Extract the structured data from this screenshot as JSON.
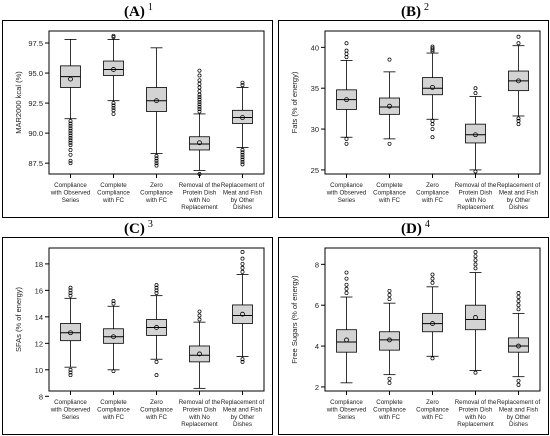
{
  "panels": [
    {
      "letter": "(A)",
      "marker": "1"
    },
    {
      "letter": "(B)",
      "marker": "2"
    },
    {
      "letter": "(C)",
      "marker": "3"
    },
    {
      "letter": "(D)",
      "marker": "4"
    }
  ],
  "chart_data": [
    {
      "type": "box",
      "panel": "(A)",
      "ylabel": "MAR2000 kcal (%)",
      "ylim": [
        86.6,
        98.5
      ],
      "yticks": [
        "87.5",
        "90.0",
        "92.5",
        "95.0",
        "97.5"
      ],
      "ytick_values": [
        87.5,
        90.0,
        92.5,
        95.0,
        97.5
      ],
      "categories": [
        "Compliance with Observed Series",
        "Complete Compliance with FC",
        "Zero Compliance with FC",
        "Removal of the Protein Dish with No Replacement",
        "Replacement of Meat and Fish by Other Dishes"
      ],
      "boxes": [
        {
          "whisker_low": 91.2,
          "q1": 93.8,
          "median": 94.7,
          "q3": 95.6,
          "whisker_high": 97.8,
          "mean": 94.5,
          "outliers": [
            91.0,
            90.8,
            90.6,
            90.4,
            90.2,
            90.0,
            89.8,
            89.6,
            89.4,
            89.2,
            89.0,
            88.6,
            88.2,
            87.7,
            87.5
          ]
        },
        {
          "whisker_low": 92.7,
          "q1": 94.8,
          "median": 95.3,
          "q3": 96.0,
          "whisker_high": 97.8,
          "mean": 95.3,
          "outliers": [
            98.0,
            98.1,
            92.5,
            92.3,
            92.1,
            91.9,
            91.6
          ]
        },
        {
          "whisker_low": 88.3,
          "q1": 91.8,
          "median": 92.7,
          "q3": 93.8,
          "whisker_high": 97.1,
          "mean": 92.7,
          "outliers": [
            88.1,
            87.9,
            87.7,
            87.5,
            87.3
          ]
        },
        {
          "whisker_low": 86.9,
          "q1": 88.6,
          "median": 89.1,
          "q3": 89.7,
          "whisker_high": 91.6,
          "mean": 89.2,
          "outliers": [
            91.8,
            92.0,
            92.2,
            92.4,
            92.6,
            92.8,
            93.0,
            93.2,
            93.5,
            93.8,
            94.1,
            94.4,
            94.8,
            95.2,
            86.6
          ]
        },
        {
          "whisker_low": 88.8,
          "q1": 90.8,
          "median": 91.3,
          "q3": 91.9,
          "whisker_high": 93.8,
          "mean": 91.3,
          "outliers": [
            94.0,
            94.2,
            88.6,
            88.4,
            88.2,
            88.0,
            87.8,
            87.6,
            87.4
          ]
        }
      ]
    },
    {
      "type": "box",
      "panel": "(B)",
      "ylabel": "Fats (% of energy)",
      "ylim": [
        24.5,
        42.0
      ],
      "yticks": [
        "25",
        "30",
        "35",
        "40"
      ],
      "ytick_values": [
        25,
        30,
        35,
        40
      ],
      "categories": [
        "Compliance with Observed Series",
        "Complete Compliance with FC",
        "Zero Compliance with FC",
        "Removal of the Protein Dish with No Replacement",
        "Replacement of Meat and Fish by Other Dishes"
      ],
      "boxes": [
        {
          "whisker_low": 29.0,
          "q1": 32.4,
          "median": 33.6,
          "q3": 34.8,
          "whisker_high": 38.4,
          "mean": 33.6,
          "outliers": [
            38.8,
            39.2,
            39.6,
            40.5,
            28.8,
            28.2
          ]
        },
        {
          "whisker_low": 28.8,
          "q1": 31.8,
          "median": 32.7,
          "q3": 33.8,
          "whisker_high": 37.0,
          "mean": 32.8,
          "outliers": [
            38.5,
            28.2
          ]
        },
        {
          "whisker_low": 31.2,
          "q1": 34.2,
          "median": 35.0,
          "q3": 36.3,
          "whisker_high": 39.3,
          "mean": 35.1,
          "outliers": [
            39.5,
            39.7,
            39.9,
            40.1,
            31.0,
            30.6,
            30.0,
            29.0
          ]
        },
        {
          "whisker_low": 25.0,
          "q1": 28.3,
          "median": 29.3,
          "q3": 30.6,
          "whisker_high": 34.0,
          "mean": 29.3,
          "outliers": [
            34.4,
            35.0,
            24.8
          ]
        },
        {
          "whisker_low": 31.6,
          "q1": 34.7,
          "median": 35.9,
          "q3": 37.1,
          "whisker_high": 40.2,
          "mean": 35.9,
          "outliers": [
            40.5,
            41.3,
            31.3,
            31.0,
            30.6
          ]
        }
      ]
    },
    {
      "type": "box",
      "panel": "(C)",
      "ylabel": "SFAs (% of energy)",
      "ylim": [
        8.4,
        19.2
      ],
      "yticks": [
        "8",
        "10",
        "12",
        "14",
        "16",
        "18"
      ],
      "ytick_values": [
        8,
        10,
        12,
        14,
        16,
        18
      ],
      "categories": [
        "Compliance with Observed Series",
        "Complete Compliance with FC",
        "Zero Compliance with FC",
        "Removal of the Protein Dish with No Replacement",
        "Replacement of Meat and Fish by Other Dishes"
      ],
      "boxes": [
        {
          "whisker_low": 10.2,
          "q1": 12.2,
          "median": 12.8,
          "q3": 13.5,
          "whisker_high": 15.4,
          "mean": 12.8,
          "outliers": [
            15.6,
            15.8,
            16.0,
            16.2,
            10.0,
            9.8,
            9.6
          ]
        },
        {
          "whisker_low": 10.0,
          "q1": 12.0,
          "median": 12.5,
          "q3": 13.1,
          "whisker_high": 14.8,
          "mean": 12.5,
          "outliers": [
            15.0,
            15.2,
            9.9
          ]
        },
        {
          "whisker_low": 10.8,
          "q1": 12.6,
          "median": 13.2,
          "q3": 13.8,
          "whisker_high": 15.6,
          "mean": 13.2,
          "outliers": [
            15.8,
            16.0,
            16.2,
            16.4,
            10.6,
            9.6
          ]
        },
        {
          "whisker_low": 8.6,
          "q1": 10.6,
          "median": 11.1,
          "q3": 11.8,
          "whisker_high": 13.6,
          "mean": 11.2,
          "outliers": [
            13.8,
            14.1,
            14.4
          ]
        },
        {
          "whisker_low": 11.0,
          "q1": 13.5,
          "median": 14.1,
          "q3": 14.9,
          "whisker_high": 17.2,
          "mean": 14.2,
          "outliers": [
            17.4,
            17.7,
            18.0,
            18.4,
            18.9,
            10.8,
            10.6
          ]
        }
      ]
    },
    {
      "type": "box",
      "panel": "(D)",
      "ylabel": "Free Sugars (% of energy)",
      "ylim": [
        1.8,
        8.8
      ],
      "yticks": [
        "2",
        "4",
        "6",
        "8"
      ],
      "ytick_values": [
        2,
        4,
        6,
        8
      ],
      "categories": [
        "Compliance with Observed Series",
        "Complete Compliance with FC",
        "Zero Compliance with FC",
        "Removal of the Protein Dish with No Replacement",
        "Replacement of Meat and Fish by Other Dishes"
      ],
      "boxes": [
        {
          "whisker_low": 2.2,
          "q1": 3.7,
          "median": 4.2,
          "q3": 4.8,
          "whisker_high": 6.4,
          "mean": 4.3,
          "outliers": [
            6.6,
            6.8,
            7.0,
            7.3,
            7.6
          ]
        },
        {
          "whisker_low": 2.6,
          "q1": 3.8,
          "median": 4.3,
          "q3": 4.7,
          "whisker_high": 6.1,
          "mean": 4.3,
          "outliers": [
            6.3,
            6.5,
            6.7,
            2.4,
            2.2
          ]
        },
        {
          "whisker_low": 3.5,
          "q1": 4.7,
          "median": 5.1,
          "q3": 5.6,
          "whisker_high": 6.9,
          "mean": 5.1,
          "outliers": [
            7.1,
            7.3,
            7.5,
            3.4
          ]
        },
        {
          "whisker_low": 2.8,
          "q1": 4.8,
          "median": 5.3,
          "q3": 6.0,
          "whisker_high": 7.6,
          "mean": 5.4,
          "outliers": [
            7.8,
            8.0,
            8.2,
            8.4,
            8.6,
            2.7
          ]
        },
        {
          "whisker_low": 2.5,
          "q1": 3.7,
          "median": 4.0,
          "q3": 4.4,
          "whisker_high": 5.6,
          "mean": 4.0,
          "outliers": [
            5.8,
            6.0,
            6.2,
            6.4,
            6.6,
            2.3,
            2.1
          ]
        }
      ]
    }
  ],
  "colors": {
    "box_fill": "#d3d3d3",
    "stroke": "#000000",
    "frame": "#000000"
  }
}
